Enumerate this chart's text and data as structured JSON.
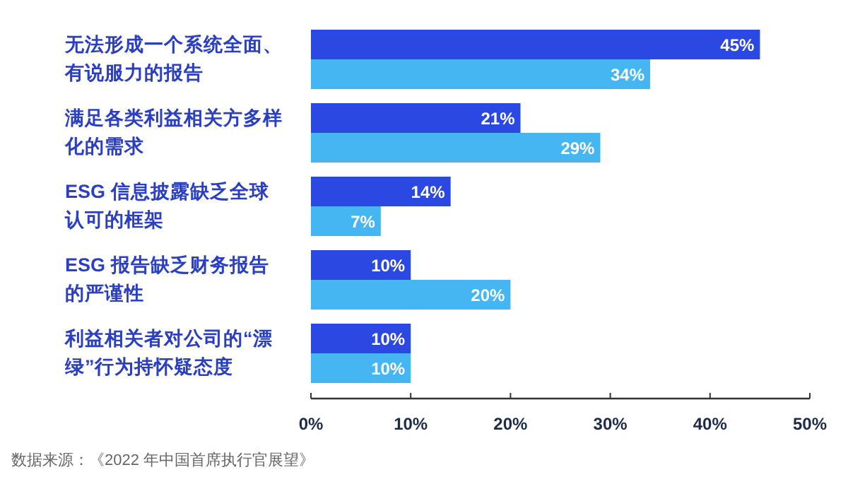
{
  "chart_data": {
    "type": "bar",
    "orientation": "horizontal",
    "categories": [
      "无法形成一个系统全面、有说服力的报告",
      "满足各类利益相关方多样化的需求",
      "ESG 信息披露缺乏全球认可的框架",
      "ESG 报告缺乏财务报告的严谨性",
      "利益相关者对公司的“漂绿”行为持怀疑态度"
    ],
    "series": [
      {
        "color": "#2b48e2",
        "values": [
          45,
          21,
          14,
          10,
          10
        ],
        "value_labels": [
          "45%",
          "21%",
          "14%",
          "10%",
          "10%"
        ]
      },
      {
        "color": "#46b6f2",
        "values": [
          34,
          29,
          7,
          20,
          10
        ],
        "value_labels": [
          "34%",
          "29%",
          "7%",
          "20%",
          "10%"
        ]
      }
    ],
    "xlim": [
      0,
      50
    ],
    "xticks": [
      {
        "value": 0,
        "label": "0%"
      },
      {
        "value": 10,
        "label": "10%"
      },
      {
        "value": 20,
        "label": "20%"
      },
      {
        "value": 30,
        "label": "30%"
      },
      {
        "value": 40,
        "label": "40%"
      },
      {
        "value": 50,
        "label": "50%"
      }
    ],
    "grid": false,
    "annotations": [
      "数据来源：《2022 年中国首席执行官展望》"
    ]
  }
}
